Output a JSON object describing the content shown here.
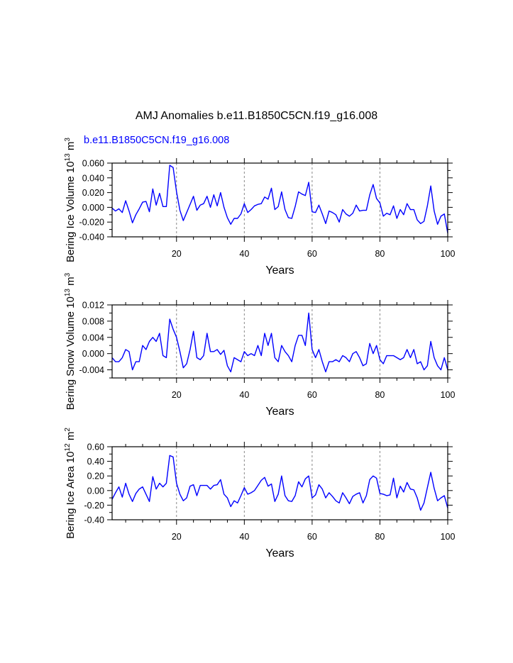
{
  "title": "AMJ Anomalies b.e11.B1850C5CN.f19_g16.008",
  "subtitle": "b.e11.B1850C5CN.f19_g16.008",
  "colors": {
    "line": "#0000ff",
    "grid": "#888888",
    "axis": "#000000"
  },
  "chart_data": [
    {
      "type": "line",
      "ylabel": "Bering Ice Volume 10",
      "ylabel_sup": "13",
      "ylabel_unit": " m",
      "ylabel_unit_sup": "3",
      "xlabel": "Years",
      "xlim": [
        1,
        100
      ],
      "ylim": [
        -0.04,
        0.06
      ],
      "yticks": [
        -0.04,
        -0.02,
        0.0,
        0.02,
        0.04,
        0.06
      ],
      "ytick_labels": [
        "-0.040",
        "-0.020",
        "0.000",
        "0.020",
        "0.040",
        "0.060"
      ],
      "xticks": [
        20,
        40,
        60,
        80,
        100
      ],
      "xtick_labels": [
        "20",
        "40",
        "60",
        "80",
        "100"
      ],
      "grid_x": [
        20,
        40,
        60,
        80
      ],
      "values": [
        -0.001,
        -0.005,
        -0.002,
        -0.007,
        0.009,
        -0.005,
        -0.021,
        -0.01,
        -0.002,
        0.007,
        0.008,
        -0.006,
        0.025,
        0.003,
        0.019,
        0.001,
        0.001,
        0.057,
        0.054,
        0.021,
        -0.004,
        -0.018,
        -0.007,
        0.004,
        0.015,
        -0.004,
        0.003,
        0.005,
        0.015,
        0.0,
        0.017,
        0.002,
        0.02,
        0.0,
        -0.014,
        -0.023,
        -0.015,
        -0.015,
        -0.009,
        0.005,
        -0.007,
        -0.003,
        0.002,
        0.004,
        0.005,
        0.014,
        0.011,
        0.026,
        -0.003,
        0.001,
        0.021,
        -0.003,
        -0.014,
        -0.015,
        0.001,
        0.021,
        0.018,
        0.016,
        0.034,
        -0.006,
        -0.007,
        0.003,
        -0.009,
        -0.022,
        -0.005,
        -0.007,
        -0.01,
        -0.02,
        -0.003,
        -0.009,
        -0.012,
        -0.008,
        0.003,
        -0.005,
        -0.004,
        -0.004,
        0.017,
        0.031,
        0.012,
        0.006,
        -0.012,
        -0.008,
        -0.01,
        0.002,
        -0.015,
        -0.003,
        -0.01,
        0.005,
        -0.003,
        -0.003,
        -0.017,
        -0.022,
        -0.019,
        0.002,
        0.029,
        -0.005,
        -0.023,
        -0.012,
        -0.009,
        -0.035
      ]
    },
    {
      "type": "line",
      "ylabel": "Bering Snow Volume 10",
      "ylabel_sup": "13",
      "ylabel_unit": " m",
      "ylabel_unit_sup": "3",
      "xlabel": "Years",
      "xlim": [
        1,
        100
      ],
      "ylim": [
        -0.006,
        0.012
      ],
      "yticks": [
        -0.004,
        0.0,
        0.004,
        0.008,
        0.012
      ],
      "ytick_labels": [
        "-0.004",
        "0.000",
        "0.004",
        "0.008",
        "0.012"
      ],
      "xticks": [
        20,
        40,
        60,
        80,
        100
      ],
      "xtick_labels": [
        "20",
        "40",
        "60",
        "80",
        "100"
      ],
      "grid_x": [
        20,
        40,
        60,
        80
      ],
      "values": [
        -0.001,
        -0.002,
        -0.002,
        -0.001,
        0.001,
        0.0005,
        -0.004,
        -0.002,
        -0.002,
        0.002,
        0.001,
        0.003,
        0.004,
        0.003,
        0.005,
        -0.0005,
        -0.001,
        0.0085,
        0.006,
        0.004,
        0.0005,
        -0.0035,
        -0.0025,
        0.001,
        0.0055,
        -0.001,
        -0.0015,
        -0.0005,
        0.005,
        0.0005,
        0.0005,
        0.001,
        -0.0002,
        0.0008,
        -0.003,
        -0.0045,
        -0.001,
        -0.0015,
        -0.002,
        0.0005,
        -0.0005,
        0.0,
        -0.0005,
        0.002,
        -0.0005,
        0.005,
        0.002,
        0.005,
        -0.001,
        -0.002,
        0.002,
        0.0005,
        -0.0005,
        -0.002,
        0.002,
        0.0045,
        0.0045,
        0.002,
        0.01,
        0.001,
        -0.001,
        0.001,
        -0.002,
        -0.0045,
        -0.002,
        -0.002,
        -0.0015,
        -0.002,
        -0.0005,
        -0.001,
        -0.002,
        0.0,
        0.0005,
        -0.001,
        -0.003,
        -0.0025,
        0.0025,
        0.0,
        0.002,
        -0.0015,
        -0.0025,
        -0.0005,
        -0.0005,
        -0.0005,
        -0.001,
        -0.0015,
        -0.001,
        0.001,
        -0.001,
        0.001,
        -0.0025,
        -0.002,
        -0.004,
        -0.003,
        0.003,
        -0.001,
        -0.003,
        -0.004,
        -0.001,
        -0.004
      ]
    },
    {
      "type": "line",
      "ylabel": "Bering Ice Area 10",
      "ylabel_sup": "12",
      "ylabel_unit": " m",
      "ylabel_unit_sup": "2",
      "xlabel": "Years",
      "xlim": [
        1,
        100
      ],
      "ylim": [
        -0.4,
        0.6
      ],
      "yticks": [
        -0.4,
        -0.2,
        0.0,
        0.2,
        0.4,
        0.6
      ],
      "ytick_labels": [
        "-0.40",
        "-0.20",
        "0.00",
        "0.20",
        "0.40",
        "0.60"
      ],
      "xticks": [
        20,
        40,
        60,
        80,
        100
      ],
      "xtick_labels": [
        "20",
        "40",
        "60",
        "80",
        "100"
      ],
      "grid_x": [
        20,
        40,
        60,
        80
      ],
      "values": [
        -0.12,
        -0.03,
        0.05,
        -0.09,
        0.1,
        -0.05,
        -0.15,
        -0.04,
        0.02,
        0.05,
        -0.05,
        -0.15,
        0.19,
        0.02,
        0.1,
        0.05,
        0.1,
        0.48,
        0.46,
        0.1,
        -0.05,
        -0.14,
        -0.1,
        0.06,
        0.08,
        -0.07,
        0.07,
        0.07,
        0.07,
        0.02,
        0.07,
        0.08,
        0.15,
        -0.05,
        -0.1,
        -0.22,
        -0.14,
        -0.17,
        -0.07,
        0.04,
        -0.05,
        -0.03,
        0.0,
        0.07,
        0.14,
        0.18,
        0.06,
        0.09,
        -0.15,
        -0.05,
        0.2,
        -0.07,
        -0.14,
        -0.15,
        -0.07,
        0.12,
        0.05,
        0.16,
        0.2,
        -0.1,
        -0.06,
        0.08,
        0.02,
        -0.1,
        -0.03,
        -0.08,
        -0.14,
        -0.17,
        -0.03,
        -0.1,
        -0.18,
        -0.08,
        -0.05,
        -0.03,
        -0.17,
        -0.07,
        0.15,
        0.2,
        0.17,
        -0.04,
        -0.05,
        -0.07,
        -0.06,
        0.17,
        -0.1,
        0.06,
        -0.02,
        0.11,
        0.02,
        0.01,
        -0.1,
        -0.27,
        -0.17,
        0.04,
        0.25,
        0.03,
        -0.14,
        -0.1,
        -0.07,
        -0.24
      ]
    }
  ]
}
